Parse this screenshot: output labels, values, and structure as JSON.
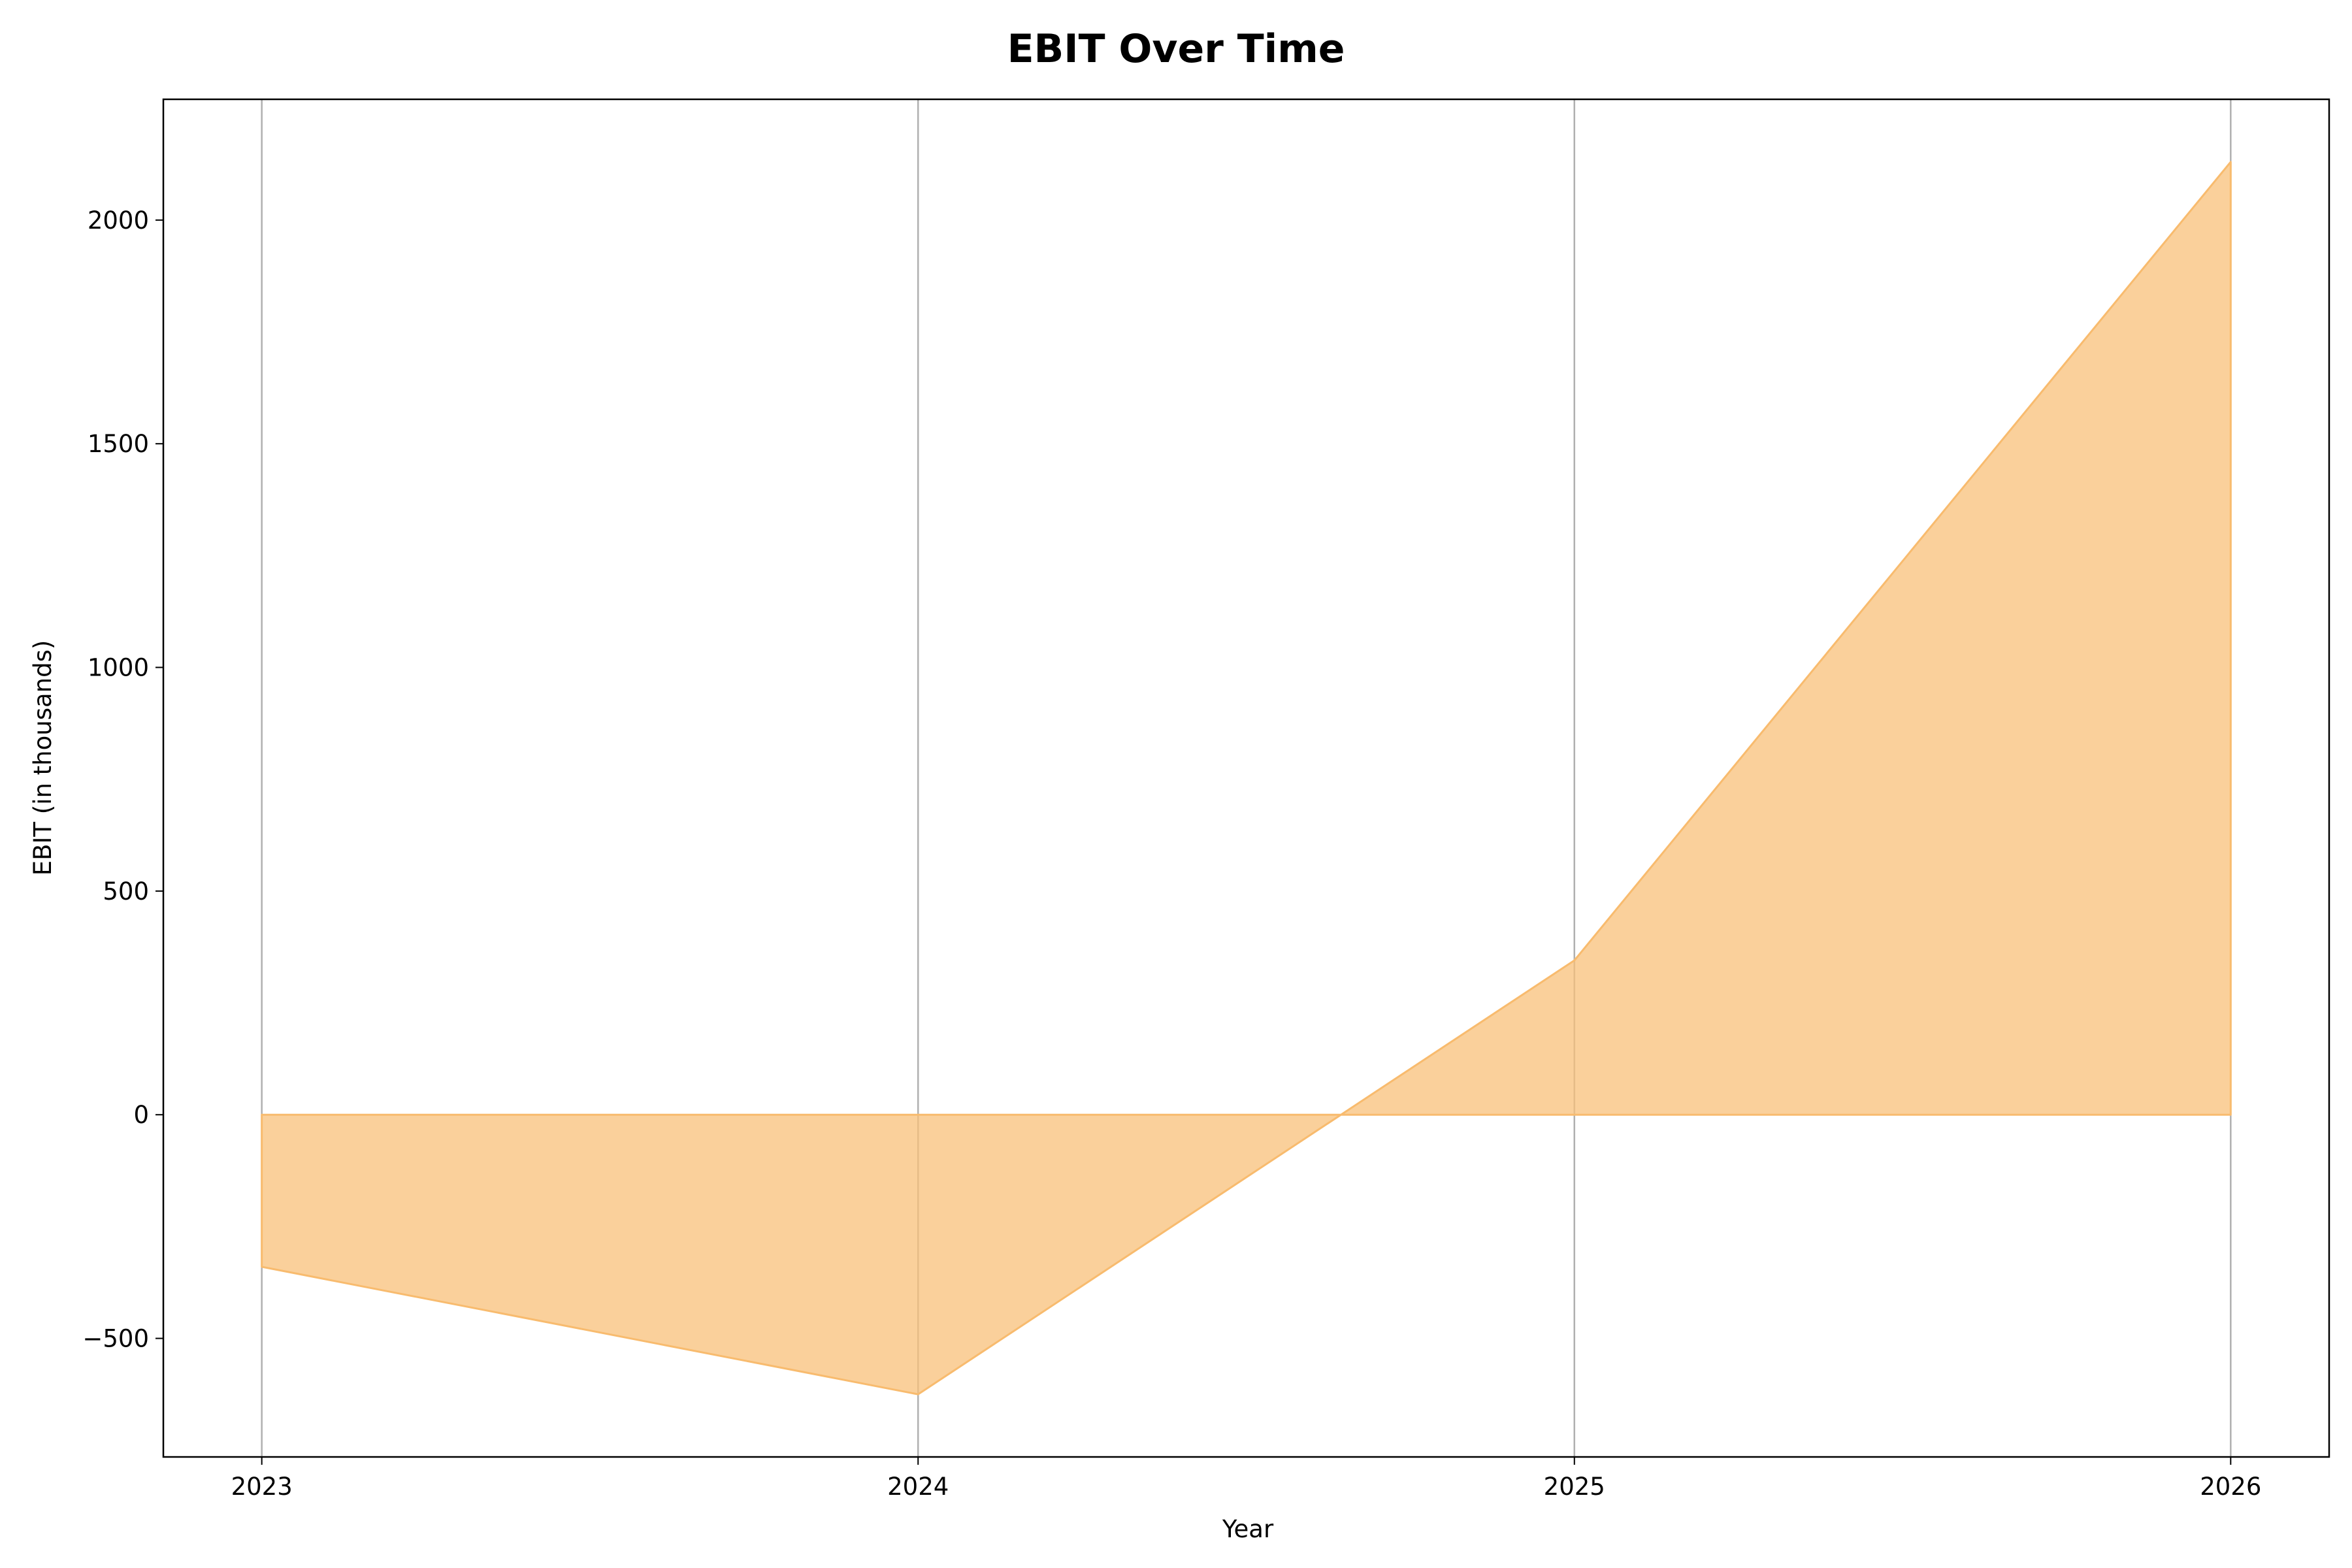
{
  "chart_data": {
    "type": "area",
    "title": "EBIT Over Time",
    "xlabel": "Year",
    "ylabel": "EBIT (in thousands)",
    "x": [
      2023,
      2024,
      2025,
      2026
    ],
    "x_tick_labels": [
      "2023",
      "2024",
      "2025",
      "2026"
    ],
    "y_ticks": [
      -500,
      0,
      500,
      1000,
      1500,
      2000
    ],
    "y_tick_labels": [
      "−500",
      "0",
      "500",
      "1000",
      "1500",
      "2000"
    ],
    "series": [
      {
        "values": [
          -340,
          -625,
          345,
          2130
        ]
      }
    ],
    "xlim": [
      2022.85,
      2026.15
    ],
    "ylim": [
      -765,
      2270
    ],
    "grid": "vertical",
    "legend": "none",
    "fill_color": "#f8c07a",
    "line_color": "#f8bb6e",
    "fill_opacity": 0.75
  }
}
